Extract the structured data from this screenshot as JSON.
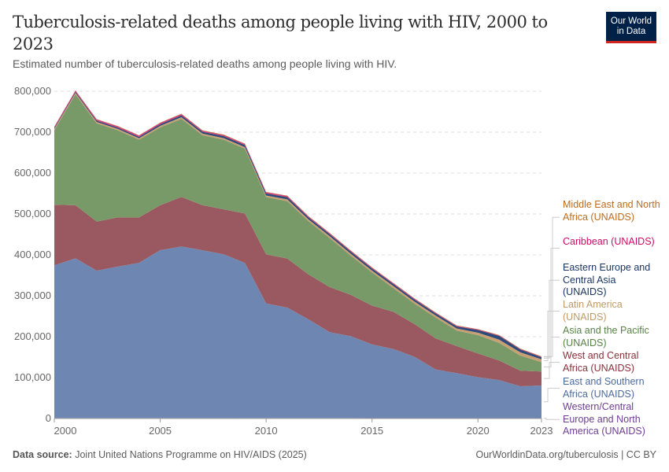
{
  "header": {
    "title": "Tuberculosis-related deaths among people living with HIV, 2000 to 2023",
    "subtitle": "Estimated number of tuberculosis-related deaths among people living with HIV.",
    "logo": [
      "Our World",
      "in Data"
    ]
  },
  "footer": {
    "source_label": "Data source:",
    "source": "Joint United Nations Programme on HIV/AIDS (2025)",
    "url": "OurWorldinData.org/tuberculosis | CC BY"
  },
  "chart_data": {
    "type": "area",
    "stacked": true,
    "x": [
      2000,
      2001,
      2002,
      2003,
      2004,
      2005,
      2006,
      2007,
      2008,
      2009,
      2010,
      2011,
      2012,
      2013,
      2014,
      2015,
      2016,
      2017,
      2018,
      2019,
      2020,
      2021,
      2022,
      2023
    ],
    "xticks": [
      "2000",
      "2005",
      "2010",
      "2015",
      "2020",
      "2023"
    ],
    "yticks": [
      "0",
      "100,000",
      "200,000",
      "300,000",
      "400,000",
      "500,000",
      "600,000",
      "700,000",
      "800,000"
    ],
    "ylim": [
      0,
      800000
    ],
    "grid": "horizontal dashed",
    "legend": "right",
    "series": [
      {
        "name": "Western/Central Europe and North America (UNAIDS)",
        "color": "#6d3e91",
        "values": [
          1500,
          1500,
          1500,
          1500,
          1500,
          1500,
          1500,
          1400,
          1400,
          1300,
          1300,
          1200,
          1200,
          1100,
          1100,
          1000,
          1000,
          1000,
          900,
          900,
          900,
          900,
          800,
          800
        ]
      },
      {
        "name": "East and Southern Africa (UNAIDS)",
        "color": "#6d87b2",
        "values": [
          373000,
          390000,
          360000,
          370000,
          379000,
          410000,
          419000,
          410000,
          400000,
          379000,
          280000,
          270000,
          241000,
          210000,
          200000,
          180000,
          169000,
          150000,
          119000,
          110000,
          100000,
          93000,
          78000,
          80000
        ]
      },
      {
        "name": "West and Central Africa (UNAIDS)",
        "color": "#9a5860",
        "values": [
          148000,
          130000,
          120000,
          120000,
          111000,
          110000,
          121000,
          110000,
          110000,
          121000,
          120000,
          120000,
          110000,
          110000,
          101000,
          95000,
          91000,
          80000,
          76000,
          66000,
          58000,
          48000,
          38000,
          34000
        ]
      },
      {
        "name": "Asia and the Pacific (UNAIDS)",
        "color": "#789a68",
        "values": [
          182000,
          271000,
          240000,
          213000,
          190000,
          190000,
          191000,
          171000,
          170000,
          158000,
          140000,
          140000,
          130000,
          120000,
          96000,
          81000,
          58000,
          50000,
          51000,
          38000,
          45000,
          43000,
          37000,
          23000
        ]
      },
      {
        "name": "Latin America (UNAIDS)",
        "color": "#c9a072",
        "values": [
          3500,
          3500,
          3500,
          3500,
          3500,
          4000,
          4000,
          4000,
          4000,
          4000,
          4000,
          4500,
          4500,
          4500,
          4500,
          4500,
          5000,
          5000,
          5000,
          5000,
          6000,
          8000,
          8000,
          7000
        ]
      },
      {
        "name": "Eastern Europe and Central Asia (UNAIDS)",
        "color": "#2e4a7a",
        "values": [
          2000,
          2500,
          3000,
          3000,
          3500,
          4000,
          4500,
          4500,
          5000,
          5000,
          5000,
          5500,
          5000,
          5000,
          5000,
          5000,
          5000,
          5000,
          5000,
          5000,
          6500,
          9000,
          7000,
          5000
        ]
      },
      {
        "name": "Caribbean (UNAIDS)",
        "color": "#d73c78",
        "values": [
          3000,
          3000,
          3000,
          3000,
          3000,
          3000,
          3000,
          2500,
          2500,
          2500,
          2500,
          2500,
          2000,
          2000,
          2000,
          2000,
          1800,
          1800,
          1500,
          1500,
          1300,
          1300,
          1200,
          1200
        ]
      },
      {
        "name": "Middle East and North Africa (UNAIDS)",
        "color": "#b66a2b",
        "values": [
          700,
          700,
          800,
          800,
          800,
          900,
          900,
          900,
          1000,
          1000,
          1000,
          1000,
          1000,
          1000,
          1000,
          1000,
          1000,
          1000,
          1000,
          1000,
          900,
          900,
          900,
          900
        ]
      }
    ]
  },
  "legend_order": [
    7,
    6,
    5,
    4,
    3,
    2,
    1,
    0
  ],
  "legend_text_colors": [
    "#6d3e91",
    "#4c6a9c",
    "#883039",
    "#578145",
    "#be9a6a",
    "#1b3661",
    "#cf0a66",
    "#bc6c1e"
  ]
}
